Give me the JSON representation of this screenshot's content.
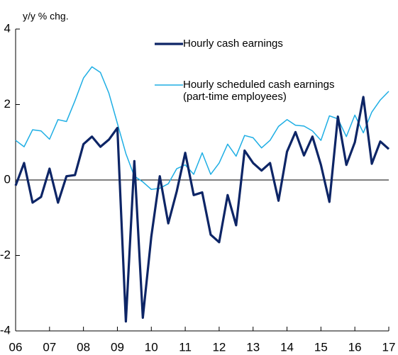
{
  "chart_data": {
    "type": "line",
    "y_label": "y/y % chg.",
    "x": [
      2006,
      2006.25,
      2006.5,
      2006.75,
      2007,
      2007.25,
      2007.5,
      2007.75,
      2008,
      2008.25,
      2008.5,
      2008.75,
      2009,
      2009.25,
      2009.5,
      2009.75,
      2010,
      2010.25,
      2010.5,
      2010.75,
      2011,
      2011.25,
      2011.5,
      2011.75,
      2012,
      2012.25,
      2012.5,
      2012.75,
      2013,
      2013.25,
      2013.5,
      2013.75,
      2014,
      2014.25,
      2014.5,
      2014.75,
      2015,
      2015.25,
      2015.5,
      2015.75,
      2016,
      2016.25,
      2016.5,
      2016.75,
      2017
    ],
    "series": [
      {
        "name": "Hourly cash earnings",
        "color": "#0d2566",
        "width": 3.2,
        "values": [
          -0.15,
          0.45,
          -0.6,
          -0.45,
          0.3,
          -0.6,
          0.1,
          0.13,
          0.95,
          1.15,
          0.88,
          1.07,
          1.38,
          -3.75,
          0.5,
          -3.65,
          -1.5,
          0.1,
          -1.15,
          -0.3,
          0.72,
          -0.4,
          -0.33,
          -1.45,
          -1.65,
          -0.4,
          -1.2,
          0.78,
          0.45,
          0.25,
          0.45,
          -0.55,
          0.75,
          1.27,
          0.65,
          1.15,
          0.4,
          -0.58,
          1.68,
          0.4,
          1.0,
          2.2,
          0.43,
          1.02,
          0.82
        ]
      },
      {
        "name": "Hourly scheduled cash earnings (part-time employees)",
        "color": "#1eaee4",
        "width": 1.5,
        "values": [
          1.05,
          0.88,
          1.33,
          1.3,
          1.08,
          1.6,
          1.55,
          2.1,
          2.7,
          3.0,
          2.85,
          2.3,
          1.5,
          0.7,
          0.1,
          -0.05,
          -0.25,
          -0.22,
          -0.1,
          0.3,
          0.4,
          0.15,
          0.72,
          0.15,
          0.45,
          0.95,
          0.63,
          1.18,
          1.12,
          0.85,
          1.05,
          1.42,
          1.6,
          1.45,
          1.43,
          1.3,
          1.05,
          1.7,
          1.62,
          1.15,
          1.72,
          1.25,
          1.8,
          2.12,
          2.35
        ]
      }
    ],
    "xlim": [
      2006,
      2017
    ],
    "xticks": [
      {
        "value": 2006,
        "label": "06"
      },
      {
        "value": 2007,
        "label": "07"
      },
      {
        "value": 2008,
        "label": "08"
      },
      {
        "value": 2009,
        "label": "09"
      },
      {
        "value": 2010,
        "label": "10"
      },
      {
        "value": 2011,
        "label": "11"
      },
      {
        "value": 2012,
        "label": "12"
      },
      {
        "value": 2013,
        "label": "13"
      },
      {
        "value": 2014,
        "label": "14"
      },
      {
        "value": 2015,
        "label": "15"
      },
      {
        "value": 2016,
        "label": "16"
      },
      {
        "value": 2017,
        "label": "17"
      }
    ],
    "ylim": [
      -4,
      4
    ],
    "yticks": [
      -4,
      -2,
      0,
      2,
      4
    ]
  }
}
